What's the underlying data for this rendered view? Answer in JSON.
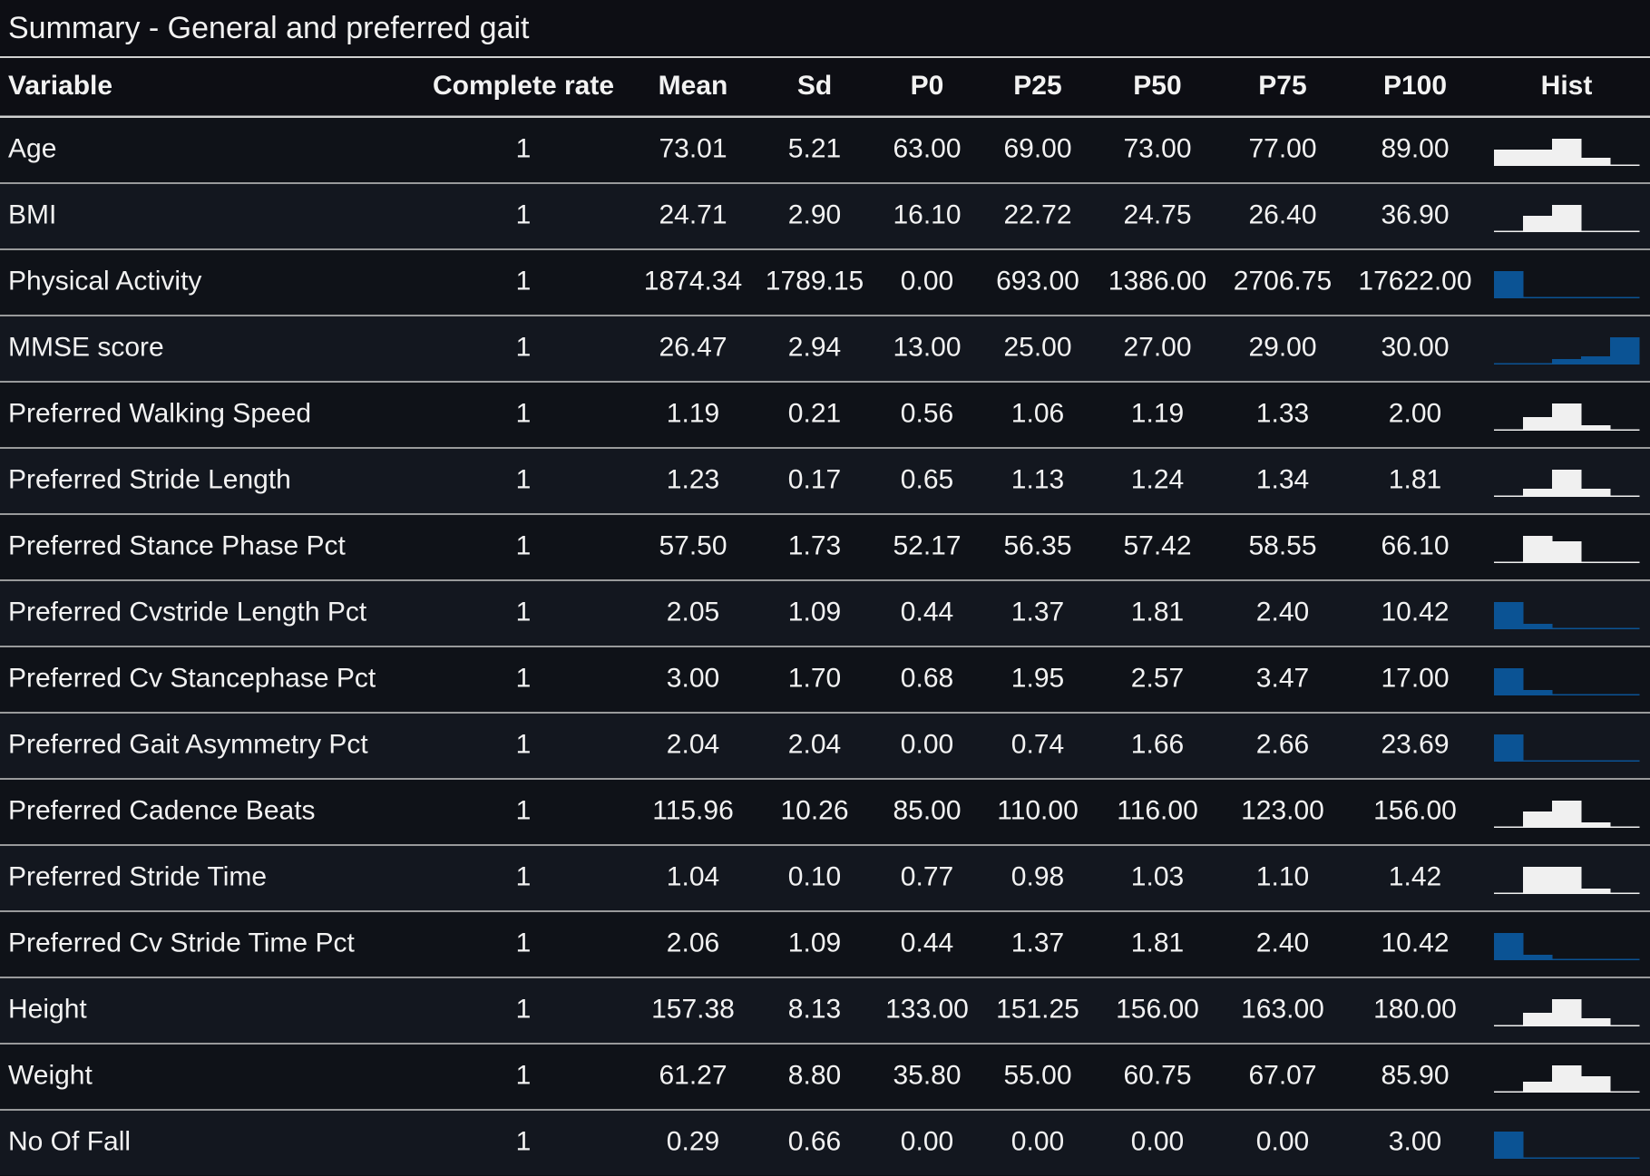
{
  "title": "Summary - General and preferred gait",
  "table": {
    "columns": [
      "Variable",
      "Complete rate",
      "Mean",
      "Sd",
      "P0",
      "P25",
      "P50",
      "P75",
      "P100",
      "Hist"
    ],
    "hist_colors": {
      "light": "#f0f0f0",
      "blue": "#0b5394"
    },
    "rows": [
      {
        "variable": "Age",
        "values": [
          "1",
          "73.01",
          "5.21",
          "63.00",
          "69.00",
          "73.00",
          "77.00",
          "89.00"
        ],
        "hist": [
          0.6,
          0.6,
          1,
          0.3,
          0.05
        ],
        "hist_color": "light"
      },
      {
        "variable": "BMI",
        "values": [
          "1",
          "24.71",
          "2.90",
          "16.10",
          "22.72",
          "24.75",
          "26.40",
          "36.90"
        ],
        "hist": [
          0.05,
          0.6,
          1,
          0.05,
          0.05
        ],
        "hist_color": "light"
      },
      {
        "variable": "Physical Activity",
        "values": [
          "1",
          "1874.34",
          "1789.15",
          "0.00",
          "693.00",
          "1386.00",
          "2706.75",
          "17622.00"
        ],
        "hist": [
          1,
          0.05,
          0.05,
          0.05,
          0.05
        ],
        "hist_color": "blue"
      },
      {
        "variable": "MMSE score",
        "values": [
          "1",
          "26.47",
          "2.94",
          "13.00",
          "25.00",
          "27.00",
          "29.00",
          "30.00"
        ],
        "hist": [
          0.05,
          0.05,
          0.2,
          0.3,
          1
        ],
        "hist_color": "blue"
      },
      {
        "variable": "Preferred Walking Speed",
        "values": [
          "1",
          "1.19",
          "0.21",
          "0.56",
          "1.06",
          "1.19",
          "1.33",
          "2.00"
        ],
        "hist": [
          0.05,
          0.5,
          1,
          0.2,
          0.05
        ],
        "hist_color": "light"
      },
      {
        "variable": "Preferred Stride Length",
        "values": [
          "1",
          "1.23",
          "0.17",
          "0.65",
          "1.13",
          "1.24",
          "1.34",
          "1.81"
        ],
        "hist": [
          0.05,
          0.3,
          1,
          0.3,
          0.05
        ],
        "hist_color": "light"
      },
      {
        "variable": "Preferred Stance Phase Pct",
        "values": [
          "1",
          "57.50",
          "1.73",
          "52.17",
          "56.35",
          "57.42",
          "58.55",
          "66.10"
        ],
        "hist": [
          0.05,
          1,
          0.8,
          0.05,
          0.05
        ],
        "hist_color": "light"
      },
      {
        "variable": "Preferred Cvstride Length Pct",
        "values": [
          "1",
          "2.05",
          "1.09",
          "0.44",
          "1.37",
          "1.81",
          "2.40",
          "10.42"
        ],
        "hist": [
          1,
          0.2,
          0.05,
          0.05,
          0.05
        ],
        "hist_color": "blue"
      },
      {
        "variable": "Preferred Cv Stancephase Pct",
        "values": [
          "1",
          "3.00",
          "1.70",
          "0.68",
          "1.95",
          "2.57",
          "3.47",
          "17.00"
        ],
        "hist": [
          1,
          0.2,
          0.05,
          0.05,
          0.05
        ],
        "hist_color": "blue"
      },
      {
        "variable": "Preferred Gait Asymmetry Pct",
        "values": [
          "1",
          "2.04",
          "2.04",
          "0.00",
          "0.74",
          "1.66",
          "2.66",
          "23.69"
        ],
        "hist": [
          1,
          0.05,
          0.05,
          0.05,
          0.05
        ],
        "hist_color": "blue"
      },
      {
        "variable": "Preferred Cadence Beats",
        "values": [
          "1",
          "115.96",
          "10.26",
          "85.00",
          "110.00",
          "116.00",
          "123.00",
          "156.00"
        ],
        "hist": [
          0.05,
          0.6,
          1,
          0.2,
          0.05
        ],
        "hist_color": "light"
      },
      {
        "variable": "Preferred Stride Time",
        "values": [
          "1",
          "1.04",
          "0.10",
          "0.77",
          "0.98",
          "1.03",
          "1.10",
          "1.42"
        ],
        "hist": [
          0.05,
          1,
          1,
          0.2,
          0.05
        ],
        "hist_color": "light"
      },
      {
        "variable": "Preferred Cv Stride Time Pct",
        "values": [
          "1",
          "2.06",
          "1.09",
          "0.44",
          "1.37",
          "1.81",
          "2.40",
          "10.42"
        ],
        "hist": [
          1,
          0.2,
          0.05,
          0.05,
          0.05
        ],
        "hist_color": "blue"
      },
      {
        "variable": "Height",
        "values": [
          "1",
          "157.38",
          "8.13",
          "133.00",
          "151.25",
          "156.00",
          "163.00",
          "180.00"
        ],
        "hist": [
          0.05,
          0.5,
          1,
          0.3,
          0.05
        ],
        "hist_color": "light"
      },
      {
        "variable": "Weight",
        "values": [
          "1",
          "61.27",
          "8.80",
          "35.80",
          "55.00",
          "60.75",
          "67.07",
          "85.90"
        ],
        "hist": [
          0.05,
          0.4,
          1,
          0.6,
          0.05
        ],
        "hist_color": "light"
      },
      {
        "variable": "No Of Fall",
        "values": [
          "1",
          "0.29",
          "0.66",
          "0.00",
          "0.00",
          "0.00",
          "0.00",
          "3.00"
        ],
        "hist": [
          1,
          0.05,
          0.05,
          0.05,
          0.05
        ],
        "hist_color": "blue"
      }
    ]
  }
}
